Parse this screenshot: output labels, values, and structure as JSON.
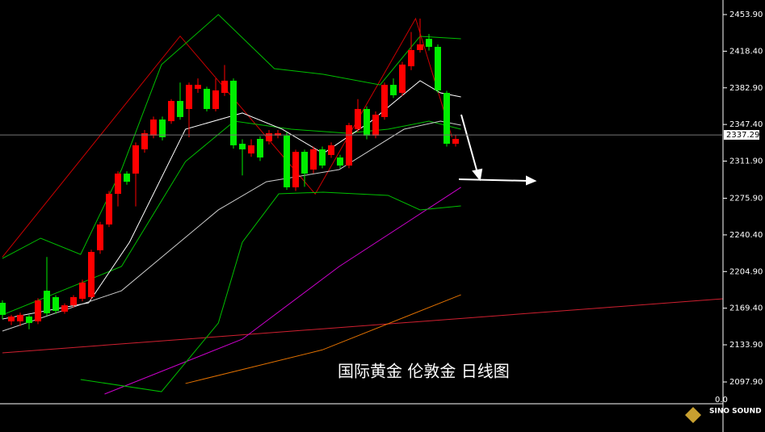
{
  "chart_data": {
    "type": "candlestick",
    "title": "国际黄金 伦敦金 日线图",
    "up_color": "#ff0000",
    "down_color": "#00ee00",
    "open": [
      2174.6,
      2156.6,
      2156.6,
      2161.3,
      2156.6,
      2186.3,
      2180.1,
      2166.0,
      2172.2,
      2178.5,
      2180.1,
      2225.5,
      2250.5,
      2280.2,
      2299.8,
      2299.8,
      2323.3,
      2336.6,
      2352.2,
      2350.6,
      2370.2,
      2362.4,
      2381.9,
      2381.9,
      2362.4,
      2378.0,
      2389.8,
      2328.7,
      2319.3,
      2333.4,
      2331.1,
      2336.6,
      2336.6,
      2286.5,
      2320.9,
      2303.7,
      2323.3,
      2317.8,
      2315.4,
      2307.6,
      2342.8,
      2362.4,
      2336.6,
      2354.6,
      2385.8,
      2378.0,
      2403.8,
      2419.5,
      2430.4,
      2422.6,
      2378.0,
      2328.7
    ],
    "close": [
      2162.9,
      2161.3,
      2162.9,
      2155.0,
      2176.9,
      2164.4,
      2166.8,
      2172.2,
      2180.1,
      2194.2,
      2223.9,
      2250.5,
      2280.2,
      2299.8,
      2291.9,
      2327.2,
      2338.9,
      2352.2,
      2335.0,
      2370.2,
      2354.6,
      2385.8,
      2385.8,
      2362.4,
      2380.4,
      2389.8,
      2327.2,
      2323.3,
      2327.2,
      2315.4,
      2338.9,
      2338.9,
      2286.5,
      2320.9,
      2299.8,
      2323.3,
      2307.6,
      2327.2,
      2307.6,
      2346.7,
      2362.4,
      2336.6,
      2356.9,
      2385.8,
      2375.7,
      2405.4,
      2419.5,
      2425.0,
      2422.6,
      2380.4,
      2328.7,
      2333.4
    ],
    "high": [
      2177,
      2163,
      2165,
      2163,
      2179,
      2219,
      2182,
      2174,
      2182,
      2197,
      2226,
      2253,
      2283,
      2302,
      2302,
      2330,
      2342,
      2355,
      2355,
      2372,
      2388,
      2388,
      2392,
      2384,
      2392,
      2405,
      2392,
      2333,
      2333,
      2336,
      2342,
      2342,
      2340,
      2323,
      2323,
      2326,
      2326,
      2330,
      2318,
      2349,
      2372,
      2365,
      2360,
      2388,
      2392,
      2408,
      2437,
      2450,
      2435,
      2425,
      2380,
      2337
    ],
    "low": [
      2159,
      2153,
      2152,
      2149,
      2154,
      2162,
      2164,
      2164,
      2170,
      2176,
      2178,
      2222,
      2248,
      2268,
      2289,
      2268,
      2320,
      2334,
      2332,
      2348,
      2352,
      2335,
      2378,
      2360,
      2360,
      2375,
      2324,
      2298,
      2316,
      2312,
      2328,
      2334,
      2284,
      2283,
      2287,
      2300,
      2305,
      2315,
      2305,
      2305,
      2340,
      2333,
      2334,
      2352,
      2373,
      2375,
      2400,
      2417,
      2419,
      2378,
      2326,
      2326
    ],
    "overlays": [
      {
        "color": "#cc0000",
        "x": [
          0,
          20,
          35.2,
          46.5,
          50.6
        ],
        "values": [
          2219,
          2433,
          2280,
          2450,
          2335
        ]
      },
      {
        "color": "#d02030",
        "x": [
          0,
          81.1
        ],
        "values": [
          2126.1,
          2178.5
        ]
      },
      {
        "color": "#e07000",
        "x": [
          20.6,
          36,
          51.6
        ],
        "values": [
          2096.4,
          2129,
          2182.4
        ]
      },
      {
        "color": "#cc00cc",
        "x": [
          11.5,
          27,
          37.9,
          51.6
        ],
        "values": [
          2086.2,
          2139.4,
          2209.8,
          2286.5
        ]
      },
      {
        "color": "#00c000",
        "x": [
          0,
          4.3,
          8.8,
          13.4,
          17.9,
          24.3,
          30.6,
          36.1,
          42.5,
          47,
          51.6
        ],
        "values": [
          2217.6,
          2237.2,
          2221.5,
          2303.7,
          2405.4,
          2453.9,
          2401.5,
          2396.0,
          2385.8,
          2432.8,
          2430.4
        ]
      },
      {
        "color": "#00c000",
        "x": [
          8.8,
          17.9,
          24.3,
          27,
          31.1,
          36.1,
          43.4,
          47,
          51.6
        ],
        "values": [
          2100.3,
          2088.5,
          2155.0,
          2233.3,
          2280.2,
          2281.8,
          2278.7,
          2264.6,
          2268.5
        ]
      },
      {
        "color": "#00c000",
        "x": [
          0,
          13.4,
          20.6,
          26.1,
          32.5,
          38.8,
          43.4,
          48,
          51.6
        ],
        "values": [
          2162.9,
          2209.8,
          2311.5,
          2350.6,
          2342.8,
          2338.9,
          2342.8,
          2350.6,
          2342.8
        ]
      },
      {
        "color": "#ffffff",
        "x": [
          0,
          9.7,
          14.3,
          20.6,
          27,
          31.5,
          36.1,
          41.5,
          47,
          49.3,
          51.6
        ],
        "values": [
          2158.9,
          2174.6,
          2233.3,
          2342.8,
          2358.5,
          2342.8,
          2319.3,
          2350.6,
          2389.8,
          2378.0,
          2374.1
        ]
      },
      {
        "color": "#cccccc",
        "x": [
          0,
          13.4,
          24.3,
          29.7,
          37.9,
          45.2,
          49.3,
          51.6
        ],
        "values": [
          2147.2,
          2186.3,
          2264.6,
          2291.9,
          2303.7,
          2342.8,
          2350.6,
          2346.7
        ]
      }
    ],
    "ylim": [
      2076.8,
      2468.0
    ],
    "yticks": [
      {
        "value": 2453.9,
        "label": "2453.90"
      },
      {
        "value": 2418.4,
        "label": "2418.40"
      },
      {
        "value": 2382.9,
        "label": "2382.90"
      },
      {
        "value": 2347.4,
        "label": "2347.40"
      },
      {
        "value": 2311.9,
        "label": "2311.90"
      },
      {
        "value": 2275.9,
        "label": "2275.90"
      },
      {
        "value": 2240.4,
        "label": "2240.40"
      },
      {
        "value": 2204.9,
        "label": "2204.90"
      },
      {
        "value": 2169.4,
        "label": "2169.40"
      },
      {
        "value": 2133.9,
        "label": "2133.90"
      },
      {
        "value": 2097.9,
        "label": "2097.90"
      }
    ],
    "current_price": 2337.29,
    "sub_axis_label": {
      "value": 0,
      "label": "0.0"
    }
  },
  "logo": {
    "text": "SINO SOUND"
  }
}
